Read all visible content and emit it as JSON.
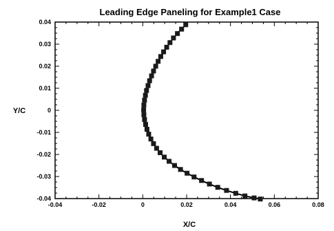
{
  "chart_data": {
    "type": "scatter",
    "title": "Leading Edge Paneling for Example1 Case",
    "xlabel": "X/C",
    "ylabel": "Y/C",
    "xlim": [
      -0.04,
      0.08
    ],
    "ylim": [
      -0.04,
      0.04
    ],
    "x_ticks": [
      "-0.04",
      "-0.02",
      "0",
      "0.02",
      "0.04",
      "0.06",
      "0.08"
    ],
    "y_ticks": [
      "0.04",
      "0.03",
      "0.02",
      "0.01",
      "0",
      "-0.01",
      "-0.02",
      "-0.03",
      "-0.04"
    ],
    "grid": false,
    "connected": true,
    "marker": "square",
    "colors": {
      "line": "#000000",
      "marker": "#1a1a1a"
    },
    "points": [
      [
        0.0196,
        0.0388
      ],
      [
        0.0177,
        0.0368
      ],
      [
        0.0158,
        0.0348
      ],
      [
        0.014,
        0.0328
      ],
      [
        0.0124,
        0.0307
      ],
      [
        0.0109,
        0.0286
      ],
      [
        0.0095,
        0.0265
      ],
      [
        0.0082,
        0.0244
      ],
      [
        0.007,
        0.0222
      ],
      [
        0.0059,
        0.02
      ],
      [
        0.0049,
        0.0178
      ],
      [
        0.004,
        0.0156
      ],
      [
        0.0031,
        0.0134
      ],
      [
        0.0024,
        0.0112
      ],
      [
        0.0017,
        0.009
      ],
      [
        0.0012,
        0.0068
      ],
      [
        0.0008,
        0.0046
      ],
      [
        0.0005,
        0.0024
      ],
      [
        0.0004,
        0.0002
      ],
      [
        0.0005,
        -0.002
      ],
      [
        0.0008,
        -0.0042
      ],
      [
        0.0013,
        -0.0064
      ],
      [
        0.0019,
        -0.0086
      ],
      [
        0.0027,
        -0.0108
      ],
      [
        0.0037,
        -0.013
      ],
      [
        0.0049,
        -0.0151
      ],
      [
        0.0063,
        -0.0172
      ],
      [
        0.0079,
        -0.0192
      ],
      [
        0.0098,
        -0.0212
      ],
      [
        0.012,
        -0.0231
      ],
      [
        0.0145,
        -0.025
      ],
      [
        0.0172,
        -0.0268
      ],
      [
        0.0202,
        -0.0285
      ],
      [
        0.0234,
        -0.0302
      ],
      [
        0.0268,
        -0.0318
      ],
      [
        0.0304,
        -0.0334
      ],
      [
        0.0342,
        -0.0349
      ],
      [
        0.0382,
        -0.0363
      ],
      [
        0.0424,
        -0.0376
      ],
      [
        0.0466,
        -0.0388
      ],
      [
        0.0508,
        -0.0397
      ],
      [
        0.0536,
        -0.0402
      ]
    ]
  }
}
